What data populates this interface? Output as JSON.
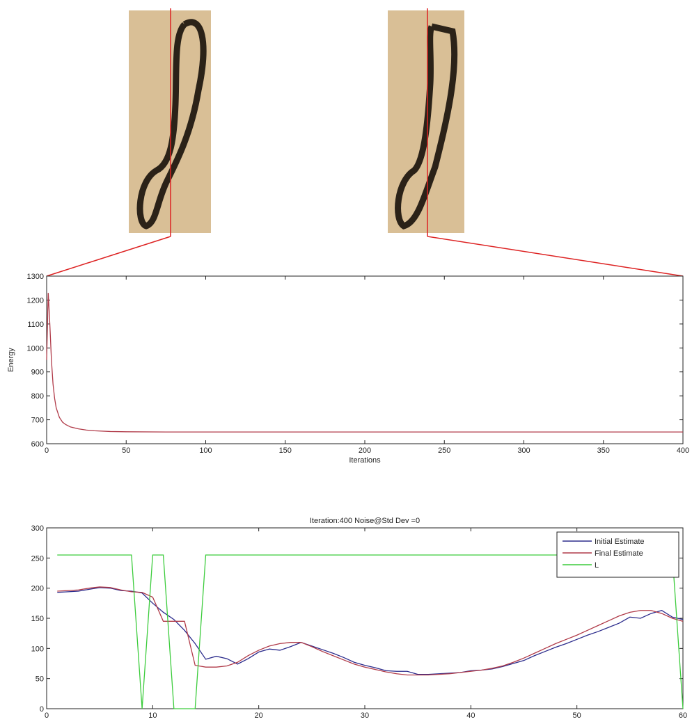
{
  "chart_data": [
    {
      "type": "line",
      "xlabel": "Iterations",
      "ylabel": "Energy",
      "x": [
        0,
        1,
        2,
        3,
        4,
        5,
        6,
        8,
        10,
        12,
        15,
        20,
        25,
        30,
        40,
        50,
        75,
        100,
        150,
        200,
        250,
        300,
        350,
        400
      ],
      "values": [
        950,
        1230,
        1100,
        950,
        850,
        790,
        750,
        710,
        690,
        680,
        670,
        662,
        657,
        654,
        651,
        650,
        649,
        649,
        649,
        649,
        649,
        649,
        649,
        649
      ],
      "color": "#b03a48",
      "xlim": [
        0,
        400
      ],
      "xticks": [
        0,
        50,
        100,
        150,
        200,
        250,
        300,
        350,
        400
      ],
      "ylim": [
        600,
        1300
      ],
      "yticks": [
        600,
        700,
        800,
        900,
        1000,
        1100,
        1200,
        1300
      ]
    },
    {
      "type": "line",
      "title": "Iteration:400 Noise@Std Dev =0",
      "x": [
        1,
        2,
        3,
        4,
        5,
        6,
        7,
        8,
        9,
        10,
        11,
        12,
        13,
        14,
        15,
        16,
        17,
        18,
        19,
        20,
        21,
        22,
        23,
        24,
        25,
        26,
        27,
        28,
        29,
        30,
        31,
        32,
        33,
        34,
        35,
        36,
        37,
        38,
        39,
        40,
        41,
        42,
        43,
        44,
        45,
        46,
        47,
        48,
        49,
        50,
        51,
        52,
        53,
        54,
        55,
        56,
        57,
        58,
        59,
        60
      ],
      "series": [
        {
          "name": "Initial Estimate",
          "color": "#2b2b8c",
          "values": [
            193,
            194,
            195,
            198,
            201,
            200,
            196,
            195,
            192,
            175,
            160,
            148,
            130,
            108,
            82,
            87,
            83,
            74,
            83,
            94,
            99,
            97,
            103,
            110,
            104,
            98,
            92,
            85,
            77,
            72,
            68,
            63,
            62,
            62,
            57,
            57,
            58,
            59,
            60,
            63,
            64,
            66,
            70,
            75,
            80,
            88,
            95,
            102,
            108,
            115,
            122,
            128,
            135,
            142,
            152,
            150,
            158,
            163,
            152,
            148
          ]
        },
        {
          "name": "Final Estimate",
          "color": "#b03a48",
          "values": [
            195,
            196,
            197,
            200,
            202,
            201,
            197,
            194,
            193,
            185,
            145,
            145,
            145,
            72,
            69,
            69,
            71,
            77,
            88,
            97,
            104,
            108,
            110,
            110,
            103,
            95,
            88,
            81,
            74,
            69,
            65,
            61,
            58,
            56,
            56,
            56,
            57,
            58,
            60,
            62,
            64,
            67,
            71,
            77,
            84,
            92,
            100,
            108,
            115,
            122,
            130,
            138,
            146,
            154,
            160,
            163,
            163,
            158,
            150,
            145
          ]
        },
        {
          "name": "L",
          "color": "#3ccc3c",
          "values": [
            255,
            255,
            255,
            255,
            255,
            255,
            255,
            255,
            0,
            255,
            255,
            0,
            0,
            0,
            255,
            255,
            255,
            255,
            255,
            255,
            255,
            255,
            255,
            255,
            255,
            255,
            255,
            255,
            255,
            255,
            255,
            255,
            255,
            255,
            255,
            255,
            255,
            255,
            255,
            255,
            255,
            255,
            255,
            255,
            255,
            255,
            255,
            255,
            255,
            255,
            255,
            255,
            255,
            255,
            255,
            255,
            255,
            255,
            255,
            0
          ]
        }
      ],
      "xlim": [
        0,
        60
      ],
      "xticks": [
        0,
        10,
        20,
        30,
        40,
        50,
        60
      ],
      "ylim": [
        0,
        300
      ],
      "yticks": [
        0,
        50,
        100,
        150,
        200,
        250,
        300
      ],
      "legend": "upper right"
    }
  ]
}
